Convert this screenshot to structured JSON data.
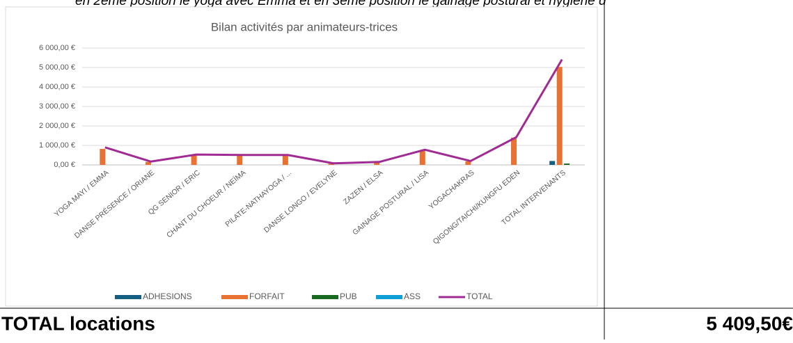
{
  "header_text": "en 2ème position le yoga avec Emma et en 3ème position le gainage postural et hygiène d",
  "footer": {
    "label": "TOTAL locations",
    "value": "5 409,50€"
  },
  "chart_data": {
    "type": "bar",
    "title": "Bilan activités par animateurs-trices",
    "categories": [
      "YOGA MAYI / EMMA",
      "DANSE PRÉSENCE / ORIANE",
      "QG SENIOR / ERIC",
      "CHANT DU CHOEUR / NEÏMA",
      "PILATE-NATHAYOGA / ...",
      "DANSE LONGO / EVELYNE",
      "ZAZEN / ELSA",
      "GAINAGE POSTURAL / LISA",
      "YOGACHAKRAS",
      "QIGONG/TAICHI/KUNGFU EDEN",
      "TOTAL INTERVENANTS"
    ],
    "series": [
      {
        "name": "ADHESIONS",
        "color": "#156082",
        "type": "bar",
        "values": [
          0,
          0,
          0,
          0,
          0,
          0,
          0,
          0,
          0,
          0,
          200
        ]
      },
      {
        "name": "FORFAIT",
        "color": "#e97132",
        "type": "bar",
        "values": [
          820,
          150,
          500,
          490,
          490,
          60,
          130,
          760,
          180,
          1400,
          5030
        ]
      },
      {
        "name": "PUB",
        "color": "#196b24",
        "type": "bar",
        "values": [
          0,
          0,
          0,
          0,
          0,
          0,
          0,
          0,
          0,
          0,
          70
        ]
      },
      {
        "name": "ASS",
        "color": "#0f9ed5",
        "type": "bar",
        "values": [
          0,
          0,
          0,
          0,
          0,
          0,
          0,
          0,
          0,
          0,
          0
        ]
      },
      {
        "name": "TOTAL",
        "color": "#a02b93",
        "type": "line",
        "values": [
          900,
          170,
          530,
          510,
          510,
          80,
          150,
          780,
          200,
          1420,
          5409.5
        ]
      }
    ],
    "ylim": [
      0,
      6000
    ],
    "yticks": [
      {
        "value": 0,
        "label": "0,00 €"
      },
      {
        "value": 1000,
        "label": "1 000,00 €"
      },
      {
        "value": 2000,
        "label": "2 000,00 €"
      },
      {
        "value": 3000,
        "label": "3 000,00 €"
      },
      {
        "value": 4000,
        "label": "4 000,00 €"
      },
      {
        "value": 5000,
        "label": "5 000,00 €"
      },
      {
        "value": 6000,
        "label": "6 000,00 €"
      }
    ],
    "grid": true,
    "legend": "bottom"
  }
}
